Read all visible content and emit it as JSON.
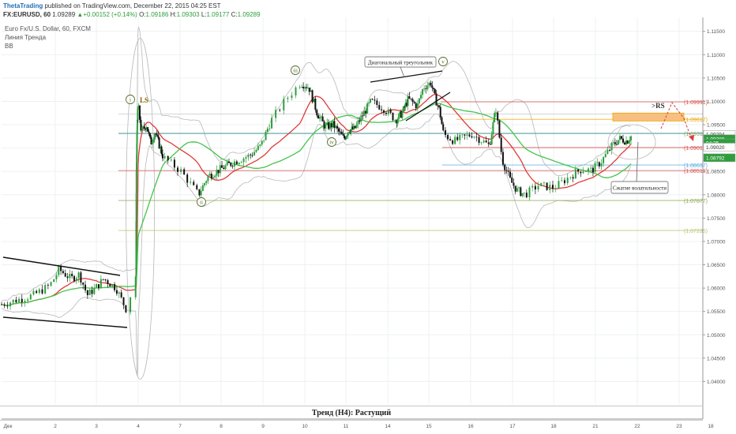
{
  "header": {
    "author": "ThetaTrading",
    "published": "published on TradingView.com, December 22, 2015 04:25 EST",
    "symbol": "FX:EURUSD, 60",
    "last": "1.09289",
    "change": "+0.00152 (+0.14%)",
    "o": "1.09186",
    "h": "1.09303",
    "l": "1.09177",
    "c": "1.09289",
    "o_label": "O:",
    "h_label": "H:",
    "l_label": "L:",
    "c_label": "C:",
    "instrument": "Euro Fx/U.S. Dollar, 60, FXCM",
    "indicator_trend": "Линия Тренда",
    "indicator_bb": "BB"
  },
  "footer": {
    "text": "Тренд (H4): Растущий"
  },
  "colors": {
    "bull": "#2e9e3c",
    "bear": "#111111",
    "ma_fast": "#e03a3a",
    "ma_slow": "#44c44a",
    "fib": "#d9534f",
    "blue_line": "#5aaee0",
    "olive": "#b8c46a",
    "orange": "#f0a500"
  },
  "chart_data": {
    "type": "candlestick",
    "ylim": [
      1.035,
      1.118
    ],
    "x_ticks": [
      "Дек",
      "2",
      "3",
      "4",
      "7",
      "8",
      "9",
      "10",
      "11",
      "14",
      "15",
      "16",
      "17",
      "18",
      "21",
      "22",
      "23",
      "18"
    ],
    "y_ticks": [
      "1.11500",
      "1.11000",
      "1.10500",
      "1.10000",
      "1.09500",
      "1.09000",
      "1.08500",
      "1.08000",
      "1.07500",
      "1.07000",
      "1.06500",
      "1.06000",
      "1.05500",
      "1.05000",
      "1.04500",
      "1.04000"
    ],
    "levels": [
      {
        "label": "(1.09991)",
        "value": 1.09991,
        "color": "#d9534f",
        "kind": "red"
      },
      {
        "label": "(1.09617)",
        "value": 1.09617,
        "color": "#f0a500",
        "kind": "orange"
      },
      {
        "label": "(1.09318)",
        "value": 1.09318,
        "color": "#8fa84a",
        "kind": "olive"
      },
      {
        "label": "(1.09011)",
        "value": 1.09011,
        "color": "#d9534f",
        "kind": "red"
      },
      {
        "label": "(1.08637)",
        "value": 1.08637,
        "color": "#5aaee0",
        "kind": "blue"
      },
      {
        "label": "(1.08518)",
        "value": 1.08518,
        "color": "#d9534f",
        "kind": "red"
      },
      {
        "label": "(1.07877)",
        "value": 1.07877,
        "color": "#8fa84a",
        "kind": "olive"
      },
      {
        "label": "(1.07235)",
        "value": 1.07235,
        "color": "#b8c46a",
        "kind": "olive"
      }
    ],
    "price_tags": [
      {
        "label": "1.09294",
        "value": 1.09294,
        "bg": "#ffffff",
        "fg": "#333333"
      },
      {
        "label": "1.09289",
        "value": 1.092,
        "bg": "#2e9e3c",
        "fg": "#ffffff"
      },
      {
        "label": "04:25",
        "value": 1.0911,
        "bg": "#2e9e3c",
        "fg": "#ffffff"
      },
      {
        "label": "1.09020",
        "value": 1.0902,
        "bg": "#ffffff",
        "fg": "#333333"
      },
      {
        "label": "1.08792",
        "value": 1.08792,
        "bg": "#2e9e3c",
        "fg": "#ffffff"
      }
    ],
    "annotations": {
      "wave_labels": [
        {
          "text": "i",
          "day": 3.85,
          "price": 1.0988
        },
        {
          "text": "ii",
          "day": 7.5,
          "price": 1.0788
        },
        {
          "text": "iii",
          "day": 9.8,
          "price": 1.1077
        },
        {
          "text": "iv",
          "day": 10.65,
          "price": 1.0893
        },
        {
          "text": "v",
          "day": 14.85,
          "price": 1.1058
        }
      ],
      "ls": {
        "text": "LS",
        "day": 4.15,
        "price": 1.0988
      },
      "rs": {
        "text": ">RS",
        "day": 21.35,
        "price": 1.0983
      },
      "triangle": "Диагональный треугольник",
      "squeeze": "Сжатие волатильности"
    }
  }
}
